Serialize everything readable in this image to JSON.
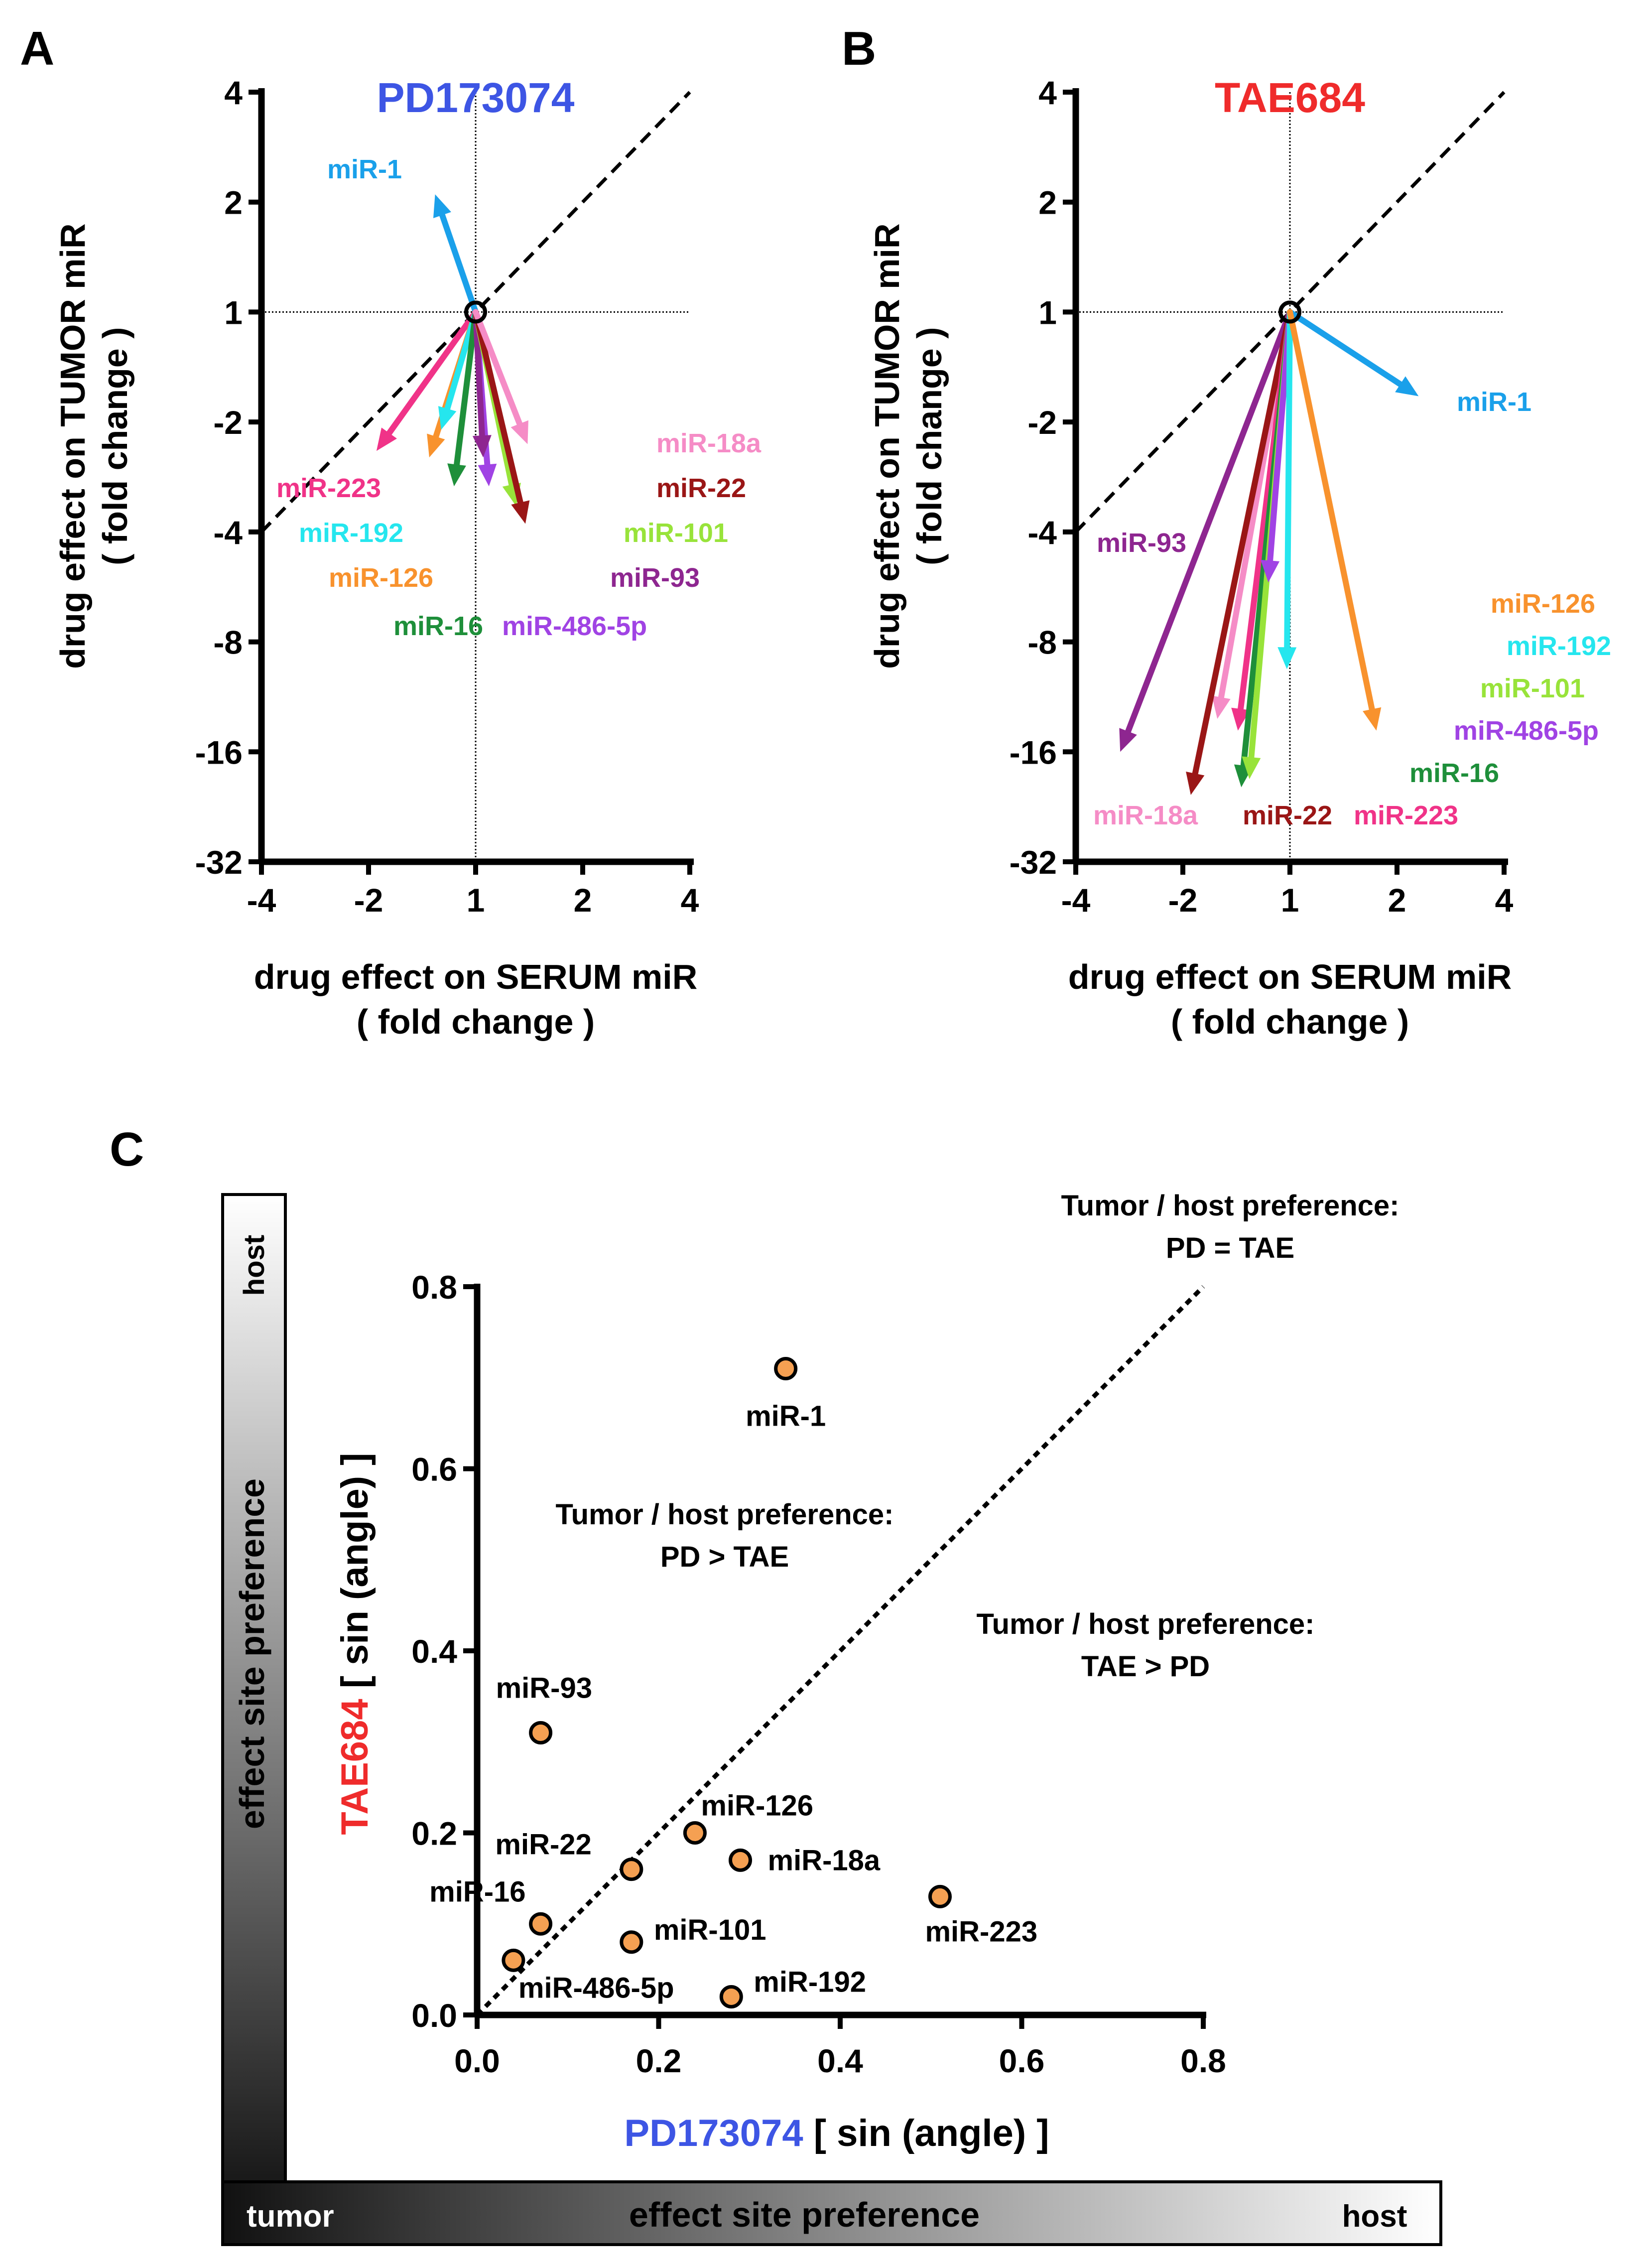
{
  "colors": {
    "blue": "#3d55e4",
    "red": "#ef2b2b",
    "miR-1": "#1aa0ea",
    "miR-18a": "#f58cc6",
    "miR-22": "#9a1616",
    "miR-101": "#98e33a",
    "miR-93": "#8e2690",
    "miR-486-5p": "#a043e4",
    "miR-16": "#1e8f3a",
    "miR-126": "#f8922d",
    "miR-192": "#25e6ee",
    "miR-223": "#f03388",
    "dot_fill": "#f5a052"
  },
  "panels": {
    "A": {
      "letter": "A"
    },
    "B": {
      "letter": "B"
    },
    "C": {
      "letter": "C"
    }
  },
  "chart_data": [
    {
      "id": "A",
      "type": "vector",
      "title": "PD173074",
      "title_color": "blue",
      "ylabel": [
        "drug effect on TUMOR miR",
        "( fold change )"
      ],
      "xlabel": [
        "drug effect on SERUM miR",
        "( fold change )"
      ],
      "x_ticks": [
        "-4",
        "-2",
        "1",
        "2",
        "4"
      ],
      "y_ticks": [
        "4",
        "2",
        "1",
        "-2",
        "-4",
        "-8",
        "-16",
        "-32"
      ],
      "x_range": [
        -4,
        4
      ],
      "y_range": [
        -32,
        4
      ],
      "origin": [
        1,
        1
      ],
      "reference_line": "identity",
      "arrows": [
        {
          "name": "miR-1",
          "x": -1.3,
          "y": 2.1
        },
        {
          "name": "miR-223",
          "x": -1.9,
          "y": -2.4
        },
        {
          "name": "miR-126",
          "x": -1.35,
          "y": -2.5
        },
        {
          "name": "miR-192",
          "x": -1.25,
          "y": -2.1
        },
        {
          "name": "miR-16",
          "x": -1.15,
          "y": -3.0
        },
        {
          "name": "miR-486-5p",
          "x": 1.09,
          "y": -3.0
        },
        {
          "name": "miR-93",
          "x": 1.05,
          "y": -2.5
        },
        {
          "name": "miR-101",
          "x": 1.3,
          "y": -3.4
        },
        {
          "name": "miR-22",
          "x": 1.38,
          "y": -3.8
        },
        {
          "name": "miR-18a",
          "x": 1.4,
          "y": -2.3
        }
      ],
      "legend": [
        "miR-18a",
        "miR-22",
        "miR-223",
        "miR-101",
        "miR-192",
        "miR-93",
        "miR-126",
        "miR-16",
        "miR-486-5p"
      ]
    },
    {
      "id": "B",
      "type": "vector",
      "title": "TAE684",
      "title_color": "red",
      "ylabel": [
        "drug effect on TUMOR miR",
        "( fold change )"
      ],
      "xlabel": [
        "drug effect on SERUM miR",
        "( fold change )"
      ],
      "x_ticks": [
        "-4",
        "-2",
        "1",
        "2",
        "4"
      ],
      "y_ticks": [
        "4",
        "2",
        "1",
        "-2",
        "-4",
        "-8",
        "-16",
        "-32"
      ],
      "x_range": [
        -4,
        4
      ],
      "y_range": [
        -32,
        4
      ],
      "origin": [
        1,
        1
      ],
      "reference_line": "identity",
      "arrows": [
        {
          "name": "miR-1",
          "x": 2.3,
          "y": -1.7
        },
        {
          "name": "miR-93",
          "x": -3.0,
          "y": -16
        },
        {
          "name": "miR-18a",
          "x": -1.6,
          "y": -13
        },
        {
          "name": "miR-22",
          "x": -1.9,
          "y": -21
        },
        {
          "name": "miR-223",
          "x": -1.4,
          "y": -14
        },
        {
          "name": "miR-16",
          "x": -1.37,
          "y": -20
        },
        {
          "name": "miR-101",
          "x": -1.3,
          "y": -19
        },
        {
          "name": "miR-486-5p",
          "x": -1.15,
          "y": -5.5
        },
        {
          "name": "miR-192",
          "x": -1.02,
          "y": -9.5
        },
        {
          "name": "miR-126",
          "x": 1.75,
          "y": -14
        }
      ],
      "legend": [
        "miR-1",
        "miR-93",
        "miR-126",
        "miR-192",
        "miR-101",
        "miR-486-5p",
        "miR-16",
        "miR-18a",
        "miR-22",
        "miR-223"
      ]
    },
    {
      "id": "C",
      "type": "scatter",
      "xlabel_drug": "PD173074",
      "xlabel_suffix": " [ sin (angle) ]",
      "ylabel_drug": "TAE684",
      "ylabel_suffix": " [ sin (angle) ]",
      "xlim": [
        0,
        0.8
      ],
      "ylim": [
        0,
        0.8
      ],
      "x_ticks": [
        "0.0",
        "0.2",
        "0.4",
        "0.6",
        "0.8"
      ],
      "y_ticks": [
        "0.0",
        "0.2",
        "0.4",
        "0.6",
        "0.8"
      ],
      "reference_line": "y = x",
      "points": [
        {
          "name": "miR-1",
          "x": 0.34,
          "y": 0.71
        },
        {
          "name": "miR-93",
          "x": 0.07,
          "y": 0.31
        },
        {
          "name": "miR-126",
          "x": 0.24,
          "y": 0.2
        },
        {
          "name": "miR-18a",
          "x": 0.29,
          "y": 0.17
        },
        {
          "name": "miR-22",
          "x": 0.17,
          "y": 0.16
        },
        {
          "name": "miR-223",
          "x": 0.51,
          "y": 0.13
        },
        {
          "name": "miR-16",
          "x": 0.07,
          "y": 0.1
        },
        {
          "name": "miR-101",
          "x": 0.17,
          "y": 0.08
        },
        {
          "name": "miR-486-5p",
          "x": 0.04,
          "y": 0.06
        },
        {
          "name": "miR-192",
          "x": 0.28,
          "y": 0.02
        }
      ],
      "annotations": [
        {
          "lines": [
            "Tumor / host preference:",
            "PD = TAE"
          ]
        },
        {
          "lines": [
            "Tumor / host preference:",
            "PD > TAE"
          ]
        },
        {
          "lines": [
            "Tumor / host preference:",
            "TAE > PD"
          ]
        }
      ],
      "side_bars": {
        "vertical_label": "effect site preference",
        "vertical_top": "host",
        "horizontal_label": "effect site preference",
        "horizontal_left": "tumor",
        "horizontal_right": "host"
      }
    }
  ]
}
